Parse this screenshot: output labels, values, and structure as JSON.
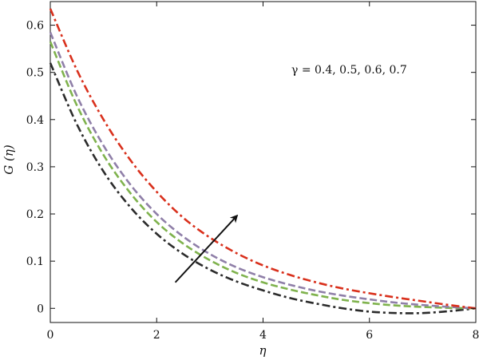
{
  "chart_data": {
    "type": "line",
    "xlabel": "η",
    "ylabel": "G (η)",
    "xlim": [
      0,
      8
    ],
    "ylim": [
      -0.03,
      0.65
    ],
    "xticks": [
      "0",
      "2",
      "4",
      "6",
      "8"
    ],
    "yticks": [
      "0",
      "0.1",
      "0.2",
      "0.3",
      "0.4",
      "0.5",
      "0.6"
    ],
    "grid": false,
    "annotation": "γ = 0.4, 0.5, 0.6, 0.7",
    "arrow": {
      "from": [
        2.35,
        0.055
      ],
      "to": [
        3.5,
        0.195
      ]
    },
    "series": [
      {
        "color": "#2b2b2b",
        "style": "dashdot",
        "x": [
          0,
          0.5,
          1,
          1.5,
          2,
          2.5,
          3,
          3.5,
          4,
          4.5,
          5,
          5.5,
          6,
          6.5,
          7,
          7.5,
          8
        ],
        "y": [
          0.52,
          0.39,
          0.29,
          0.215,
          0.158,
          0.115,
          0.082,
          0.057,
          0.038,
          0.022,
          0.01,
          0.0,
          -0.007,
          -0.01,
          -0.01,
          -0.006,
          0.0
        ]
      },
      {
        "color": "#7fb24d",
        "style": "dashed",
        "x": [
          0,
          0.5,
          1,
          1.5,
          2,
          2.5,
          3,
          3.5,
          4,
          4.5,
          5,
          5.5,
          6,
          6.5,
          7,
          7.5,
          8
        ],
        "y": [
          0.565,
          0.43,
          0.325,
          0.245,
          0.183,
          0.137,
          0.102,
          0.075,
          0.055,
          0.04,
          0.028,
          0.018,
          0.011,
          0.006,
          0.003,
          0.001,
          0.0
        ]
      },
      {
        "color": "#8f7fa8",
        "style": "dashed",
        "x": [
          0,
          0.5,
          1,
          1.5,
          2,
          2.5,
          3,
          3.5,
          4,
          4.5,
          5,
          5.5,
          6,
          6.5,
          7,
          7.5,
          8
        ],
        "y": [
          0.585,
          0.45,
          0.345,
          0.263,
          0.2,
          0.152,
          0.115,
          0.087,
          0.066,
          0.05,
          0.037,
          0.027,
          0.019,
          0.012,
          0.007,
          0.003,
          0.0
        ]
      },
      {
        "color": "#d9301c",
        "style": "dashdot",
        "x": [
          0,
          0.5,
          1,
          1.5,
          2,
          2.5,
          3,
          3.5,
          4,
          4.5,
          5,
          5.5,
          6,
          6.5,
          7,
          7.5,
          8
        ],
        "y": [
          0.635,
          0.505,
          0.4,
          0.315,
          0.247,
          0.192,
          0.15,
          0.117,
          0.091,
          0.071,
          0.055,
          0.042,
          0.032,
          0.023,
          0.015,
          0.007,
          0.0
        ]
      }
    ]
  }
}
